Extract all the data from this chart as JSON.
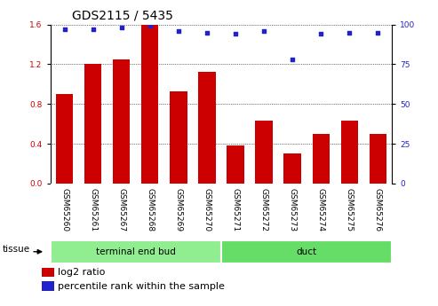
{
  "title": "GDS2115 / 5435",
  "categories": [
    "GSM65260",
    "GSM65261",
    "GSM65267",
    "GSM65268",
    "GSM65269",
    "GSM65270",
    "GSM65271",
    "GSM65272",
    "GSM65273",
    "GSM65274",
    "GSM65275",
    "GSM65276"
  ],
  "log2_ratio": [
    0.9,
    1.2,
    1.25,
    1.6,
    0.93,
    1.12,
    0.38,
    0.63,
    0.3,
    0.5,
    0.63,
    0.5
  ],
  "percentile_rank": [
    97,
    97,
    98,
    99,
    96,
    95,
    94,
    96,
    78,
    94,
    95,
    95
  ],
  "bar_color": "#cc0000",
  "dot_color": "#2222cc",
  "ylim_left": [
    0,
    1.6
  ],
  "ylim_right": [
    0,
    100
  ],
  "yticks_left": [
    0,
    0.4,
    0.8,
    1.2,
    1.6
  ],
  "yticks_right": [
    0,
    25,
    50,
    75,
    100
  ],
  "groups": [
    {
      "label": "terminal end bud",
      "start": 0,
      "end": 6,
      "color": "#90ee90"
    },
    {
      "label": "duct",
      "start": 6,
      "end": 12,
      "color": "#66dd66"
    }
  ],
  "tissue_label": "tissue",
  "legend_bar_label": "log2 ratio",
  "legend_dot_label": "percentile rank within the sample",
  "bar_label_color": "#cc0000",
  "dot_label_color": "#2222cc",
  "tick_area_color": "#d0d0d0",
  "background_color": "#ffffff",
  "title_fontsize": 10,
  "tick_fontsize": 6.5,
  "legend_fontsize": 8
}
